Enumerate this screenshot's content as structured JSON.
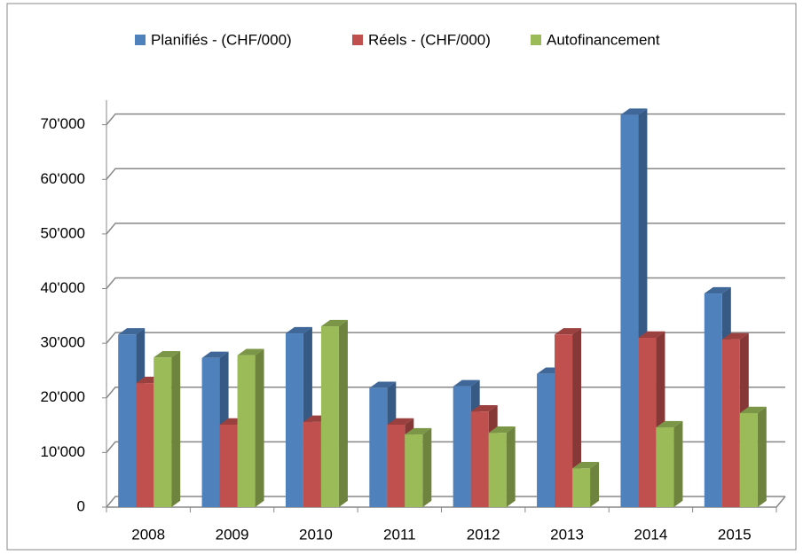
{
  "chart_data": {
    "type": "bar3d",
    "categories": [
      "2008",
      "2009",
      "2010",
      "2011",
      "2012",
      "2013",
      "2014",
      "2015"
    ],
    "series": [
      {
        "name": "Planifiés - (CHF/000)",
        "color": "#4f81bd",
        "values": [
          31600,
          27300,
          31800,
          21800,
          22100,
          24400,
          71800,
          39100
        ]
      },
      {
        "name": "Réels - (CHF/000)",
        "color": "#c0504d",
        "values": [
          22700,
          15100,
          15600,
          15100,
          17500,
          31600,
          31000,
          30700
        ]
      },
      {
        "name": "Autofinancement",
        "color": "#9bbb59",
        "values": [
          27400,
          27800,
          33100,
          13300,
          13600,
          7100,
          14600,
          17200
        ]
      }
    ],
    "ylim": [
      0,
      74000
    ],
    "yticks": [
      0,
      {
        "value": 10000,
        "label": "10'000"
      },
      {
        "value": 20000,
        "label": "20'000"
      },
      {
        "value": 30000,
        "label": "30'000"
      },
      {
        "value": 40000,
        "label": "40'000"
      },
      {
        "value": 50000,
        "label": "50'000"
      },
      {
        "value": 60000,
        "label": "60'000"
      },
      {
        "value": 70000,
        "label": "70'000"
      }
    ],
    "grid": true,
    "legend": "top"
  }
}
